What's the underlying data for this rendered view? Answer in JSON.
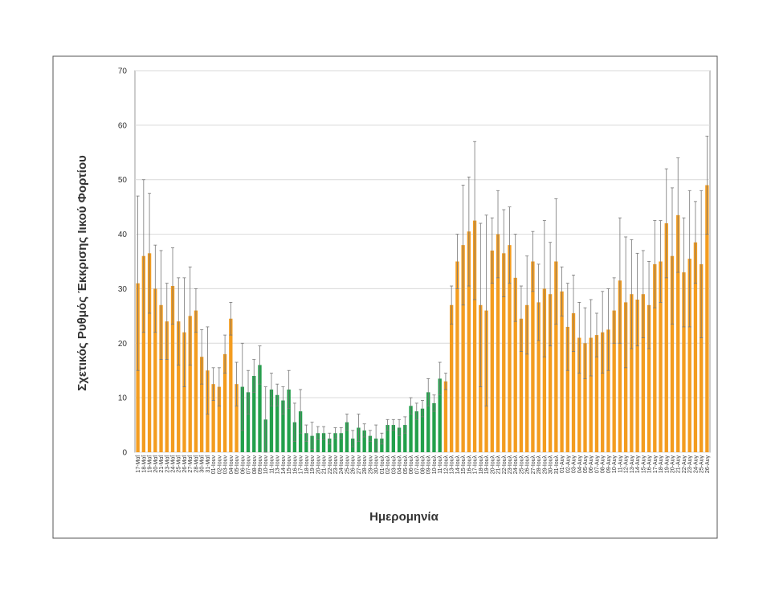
{
  "chart_data": {
    "type": "bar",
    "y_label": "Σχετικός Ρυθμός Έκκρισης Ιικού Φορτίου",
    "x_label": "Ημερομηνία",
    "categories": [
      "17-Μαΐ",
      "18-Μαΐ",
      "19-Μαΐ",
      "20-Μαΐ",
      "21-Μαΐ",
      "23-Μαΐ",
      "24-Μαΐ",
      "25-Μαΐ",
      "26-Μαΐ",
      "27-Μαΐ",
      "28-Μαΐ",
      "30-Μαΐ",
      "31-Μαΐ",
      "01-Ιουν",
      "02-Ιουν",
      "03-Ιουν",
      "04-Ιουν",
      "05-Ιουν",
      "06-Ιουν",
      "07-Ιουν",
      "08-Ιουν",
      "09-Ιουν",
      "10-Ιουν",
      "11-Ιουν",
      "13-Ιουν",
      "14-Ιουν",
      "15-Ιουν",
      "16-Ιουν",
      "17-Ιουν",
      "18-Ιουν",
      "19-Ιουν",
      "20-Ιουν",
      "21-Ιουν",
      "22-Ιουν",
      "23-Ιουν",
      "24-Ιουν",
      "25-Ιουν",
      "26-Ιουν",
      "27-Ιουν",
      "28-Ιουν",
      "29-Ιουν",
      "30-Ιουν",
      "01-Ιουλ",
      "02-Ιουλ",
      "03-Ιουλ",
      "04-Ιουλ",
      "05-Ιουλ",
      "06-Ιουλ",
      "07-Ιουλ",
      "08-Ιουλ",
      "09-Ιουλ",
      "10-Ιουλ",
      "11-Ιουλ",
      "12-Ιουλ",
      "13-Ιουλ",
      "14-Ιουλ",
      "15-Ιουλ",
      "16-Ιουλ",
      "17-Ιουλ",
      "18-Ιουλ",
      "19-Ιουλ",
      "20-Ιουλ",
      "21-Ιουλ",
      "22-Ιουλ",
      "23-Ιουλ",
      "24-Ιουλ",
      "25-Ιουλ",
      "26-Ιουλ",
      "27-Ιουλ",
      "28-Ιουλ",
      "29-Ιουλ",
      "30-Ιουλ",
      "31-Ιουλ",
      "01-Αυγ",
      "02-Αυγ",
      "03-Αυγ",
      "04-Αυγ",
      "05-Αυγ",
      "06-Αυγ",
      "07-Αυγ",
      "08-Αυγ",
      "09-Αυγ",
      "10-Αυγ",
      "11-Αυγ",
      "12-Αυγ",
      "13-Αυγ",
      "14-Αυγ",
      "15-Αυγ",
      "16-Αυγ",
      "17-Αυγ",
      "18-Αυγ",
      "19-Αυγ",
      "20-Αυγ",
      "21-Αυγ",
      "22-Αυγ",
      "23-Αυγ",
      "24-Αυγ",
      "25-Αυγ",
      "26-Αυγ"
    ],
    "values": [
      31,
      36,
      36.5,
      30,
      27,
      24,
      30.5,
      24,
      22,
      25,
      26,
      17.5,
      15,
      12.5,
      12,
      18,
      24.5,
      12.5,
      12,
      11,
      14,
      16,
      6,
      11.5,
      10.5,
      9.5,
      11.5,
      5.5,
      7.5,
      3.5,
      3,
      3.5,
      3.5,
      2.5,
      3.5,
      3.5,
      5.5,
      2.5,
      4.5,
      4,
      3,
      2.5,
      2.5,
      5,
      5,
      4.5,
      5,
      8.5,
      7.5,
      8,
      11,
      9,
      13.5,
      13,
      27,
      35,
      38,
      40.5,
      42.5,
      27,
      26,
      37,
      40,
      36.5,
      38,
      32,
      24.5,
      27,
      35,
      27.5,
      30,
      29,
      35,
      29.5,
      23,
      25.5,
      21,
      20,
      21,
      21.5,
      22,
      22.5,
      26,
      31.5,
      27.5,
      29,
      28,
      29,
      27,
      34.5,
      35,
      42,
      36,
      43.5,
      33,
      35.5,
      38.5,
      34.5,
      49
    ],
    "errors": [
      16,
      14,
      11,
      8,
      10,
      7,
      7,
      8,
      10,
      9,
      4,
      5,
      8,
      3,
      3.5,
      3.5,
      3,
      4,
      8,
      4,
      3,
      3.5,
      6,
      3,
      2,
      2.5,
      3.5,
      3.5,
      4,
      1.5,
      2.5,
      1.2,
      1.2,
      1,
      1,
      1,
      1.5,
      1.5,
      2.5,
      1.2,
      1,
      2.5,
      1,
      1,
      1,
      1.5,
      1.5,
      1.5,
      1.5,
      1.5,
      2.5,
      1.5,
      3,
      1.5,
      3.5,
      5,
      11,
      10,
      14.5,
      15,
      17.5,
      6,
      8,
      8,
      7,
      8,
      6,
      9,
      5.5,
      7,
      12.5,
      9.5,
      11.5,
      4.5,
      8,
      7,
      6.5,
      6.5,
      7,
      4,
      7.5,
      7.5,
      6,
      11.5,
      12,
      10,
      8.5,
      8,
      8,
      8,
      7.5,
      10,
      12.5,
      10.5,
      10,
      12.5,
      7.5,
      13.5,
      9
    ],
    "colors": [
      "#f39c1f",
      "#f39c1f",
      "#f39c1f",
      "#f39c1f",
      "#f39c1f",
      "#f39c1f",
      "#f39c1f",
      "#f39c1f",
      "#f39c1f",
      "#f39c1f",
      "#f39c1f",
      "#f39c1f",
      "#f39c1f",
      "#f39c1f",
      "#f39c1f",
      "#f39c1f",
      "#f39c1f",
      "#f39c1f",
      "#22a04b",
      "#22a04b",
      "#22a04b",
      "#22a04b",
      "#22a04b",
      "#22a04b",
      "#22a04b",
      "#22a04b",
      "#22a04b",
      "#22a04b",
      "#22a04b",
      "#22a04b",
      "#22a04b",
      "#22a04b",
      "#22a04b",
      "#22a04b",
      "#22a04b",
      "#22a04b",
      "#22a04b",
      "#22a04b",
      "#22a04b",
      "#22a04b",
      "#22a04b",
      "#22a04b",
      "#22a04b",
      "#22a04b",
      "#22a04b",
      "#22a04b",
      "#22a04b",
      "#22a04b",
      "#22a04b",
      "#22a04b",
      "#22a04b",
      "#22a04b",
      "#22a04b",
      "#f39c1f",
      "#f39c1f",
      "#f39c1f",
      "#f39c1f",
      "#f39c1f",
      "#f39c1f",
      "#f39c1f",
      "#f39c1f",
      "#f39c1f",
      "#f39c1f",
      "#f39c1f",
      "#f39c1f",
      "#f39c1f",
      "#f39c1f",
      "#f39c1f",
      "#f39c1f",
      "#f39c1f",
      "#f39c1f",
      "#f39c1f",
      "#f39c1f",
      "#f39c1f",
      "#f39c1f",
      "#f39c1f",
      "#f39c1f",
      "#f39c1f",
      "#f39c1f",
      "#f39c1f",
      "#f39c1f",
      "#f39c1f",
      "#f39c1f",
      "#f39c1f",
      "#f39c1f",
      "#f39c1f",
      "#f39c1f",
      "#f39c1f",
      "#f39c1f",
      "#f39c1f",
      "#f39c1f",
      "#f39c1f",
      "#f39c1f",
      "#f39c1f",
      "#f39c1f",
      "#f39c1f",
      "#f39c1f",
      "#f39c1f",
      "#f39c1f"
    ],
    "ylim": [
      0,
      70
    ],
    "yticks": [
      0,
      10,
      20,
      30,
      40,
      50,
      60,
      70
    ],
    "grid": true
  }
}
